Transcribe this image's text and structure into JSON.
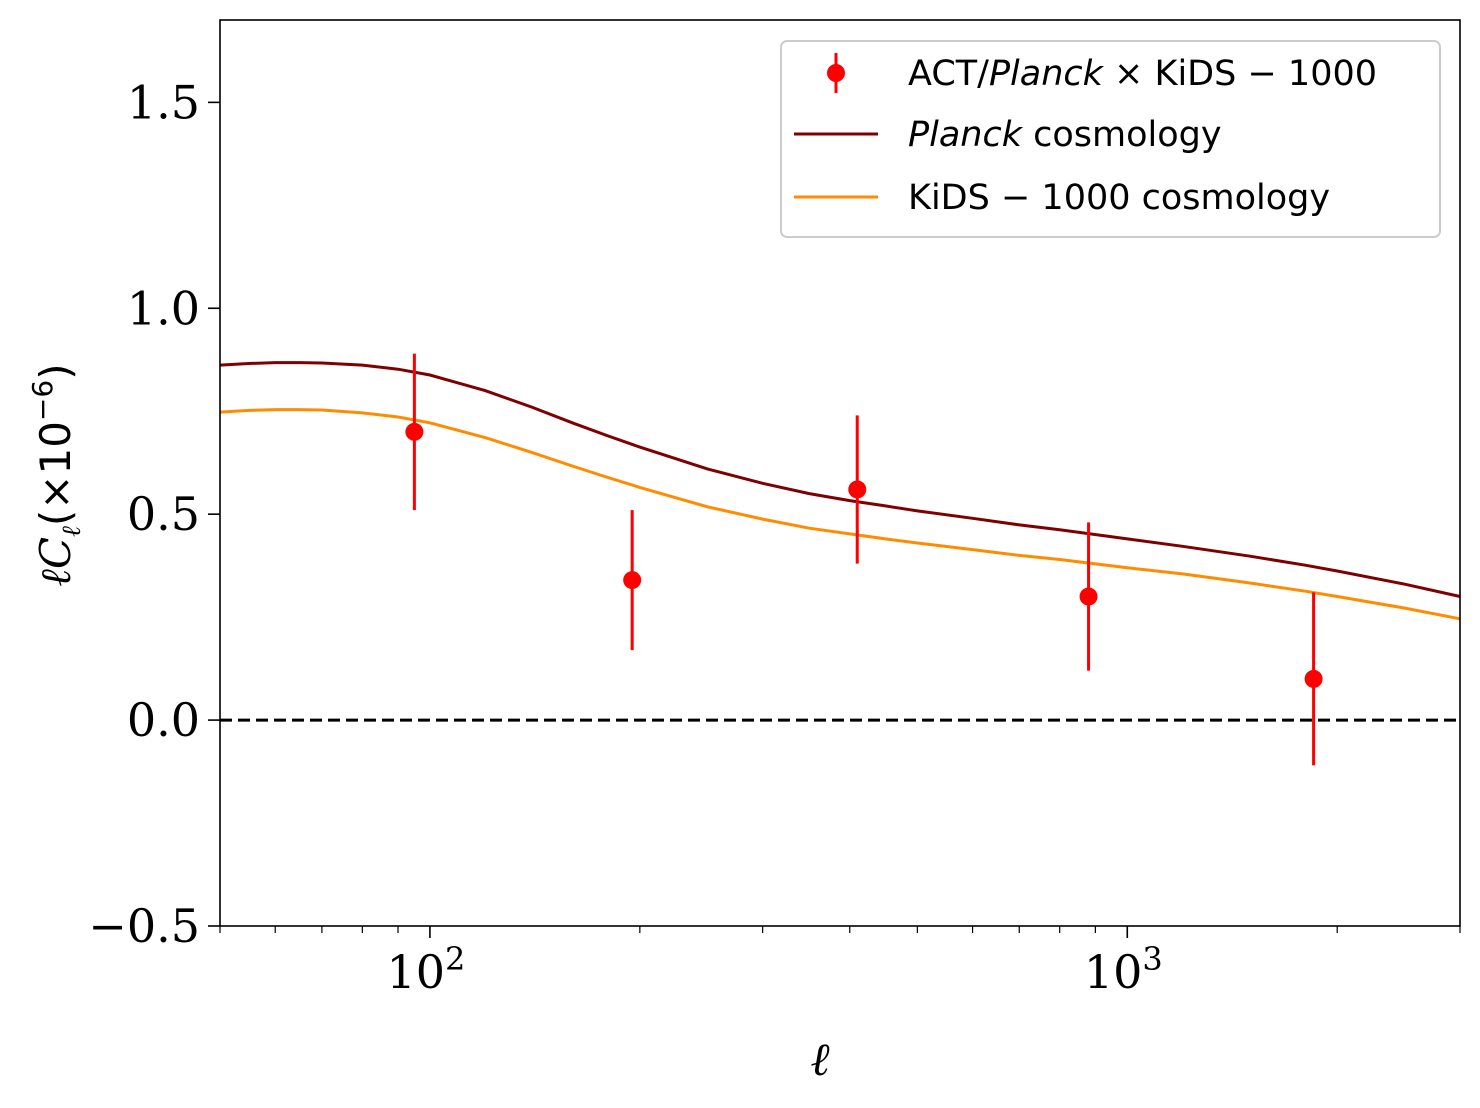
{
  "chart_data": {
    "type": "scatter",
    "title": "",
    "xlabel": "ℓ",
    "ylabel": {
      "symbol": "ℓC",
      "subscript": "ℓ",
      "scale": "(×10",
      "exponent": "−6",
      "close": ")"
    },
    "xscale": "log",
    "xlim": [
      50,
      3000
    ],
    "ylim": [
      -0.5,
      1.7
    ],
    "xticks": [
      {
        "value": 100,
        "base": "10",
        "exp": "2"
      },
      {
        "value": 1000,
        "base": "10",
        "exp": "3"
      }
    ],
    "yticks": [
      {
        "value": -0.5,
        "label": "−0.5"
      },
      {
        "value": 0.0,
        "label": "0.0"
      },
      {
        "value": 0.5,
        "label": "0.5"
      },
      {
        "value": 1.0,
        "label": "1.0"
      },
      {
        "value": 1.5,
        "label": "1.5"
      }
    ],
    "reference_line": {
      "y": 0.0,
      "style": "dashed",
      "color": "#000000"
    },
    "series": [
      {
        "name": "ACT/Planck × KiDS − 1000",
        "kind": "errorbar",
        "color": "#ff0000",
        "x": [
          95,
          195,
          410,
          880,
          1850
        ],
        "y": [
          0.7,
          0.34,
          0.56,
          0.3,
          0.1
        ],
        "yerr": [
          0.19,
          0.17,
          0.18,
          0.18,
          0.21
        ]
      },
      {
        "name": "Planck cosmology",
        "kind": "line",
        "color": "#7f0000",
        "x": [
          50,
          55,
          60,
          65,
          70,
          80,
          90,
          100,
          120,
          140,
          160,
          180,
          200,
          250,
          300,
          350,
          400,
          450,
          500,
          600,
          700,
          800,
          1000,
          1200,
          1500,
          1800,
          2000,
          2500,
          3000
        ],
        "y": [
          0.862,
          0.866,
          0.868,
          0.868,
          0.867,
          0.862,
          0.852,
          0.838,
          0.8,
          0.76,
          0.722,
          0.69,
          0.663,
          0.61,
          0.575,
          0.55,
          0.533,
          0.52,
          0.508,
          0.49,
          0.474,
          0.462,
          0.44,
          0.422,
          0.398,
          0.376,
          0.362,
          0.33,
          0.3
        ]
      },
      {
        "name": "KiDS − 1000 cosmology",
        "kind": "line",
        "color": "#ff8c00",
        "x": [
          50,
          55,
          60,
          65,
          70,
          80,
          90,
          100,
          120,
          140,
          160,
          180,
          200,
          250,
          300,
          350,
          400,
          450,
          500,
          600,
          700,
          800,
          1000,
          1200,
          1500,
          1800,
          2000,
          2500,
          3000
        ],
        "y": [
          0.748,
          0.752,
          0.754,
          0.754,
          0.753,
          0.746,
          0.736,
          0.722,
          0.686,
          0.65,
          0.617,
          0.589,
          0.565,
          0.518,
          0.488,
          0.466,
          0.452,
          0.44,
          0.43,
          0.414,
          0.4,
          0.39,
          0.37,
          0.355,
          0.333,
          0.313,
          0.3,
          0.272,
          0.246
        ]
      }
    ],
    "legend": {
      "position": "top-right",
      "entries": [
        {
          "series": 0,
          "parts": [
            {
              "t": "ACT/",
              "i": false
            },
            {
              "t": "Planck",
              "i": true
            },
            {
              "t": " × KiDS − 1000",
              "i": false
            }
          ]
        },
        {
          "series": 1,
          "parts": [
            {
              "t": "Planck",
              "i": true
            },
            {
              "t": " cosmology",
              "i": false
            }
          ]
        },
        {
          "series": 2,
          "parts": [
            {
              "t": "KiDS − 1000 cosmology",
              "i": false
            }
          ]
        }
      ]
    }
  }
}
